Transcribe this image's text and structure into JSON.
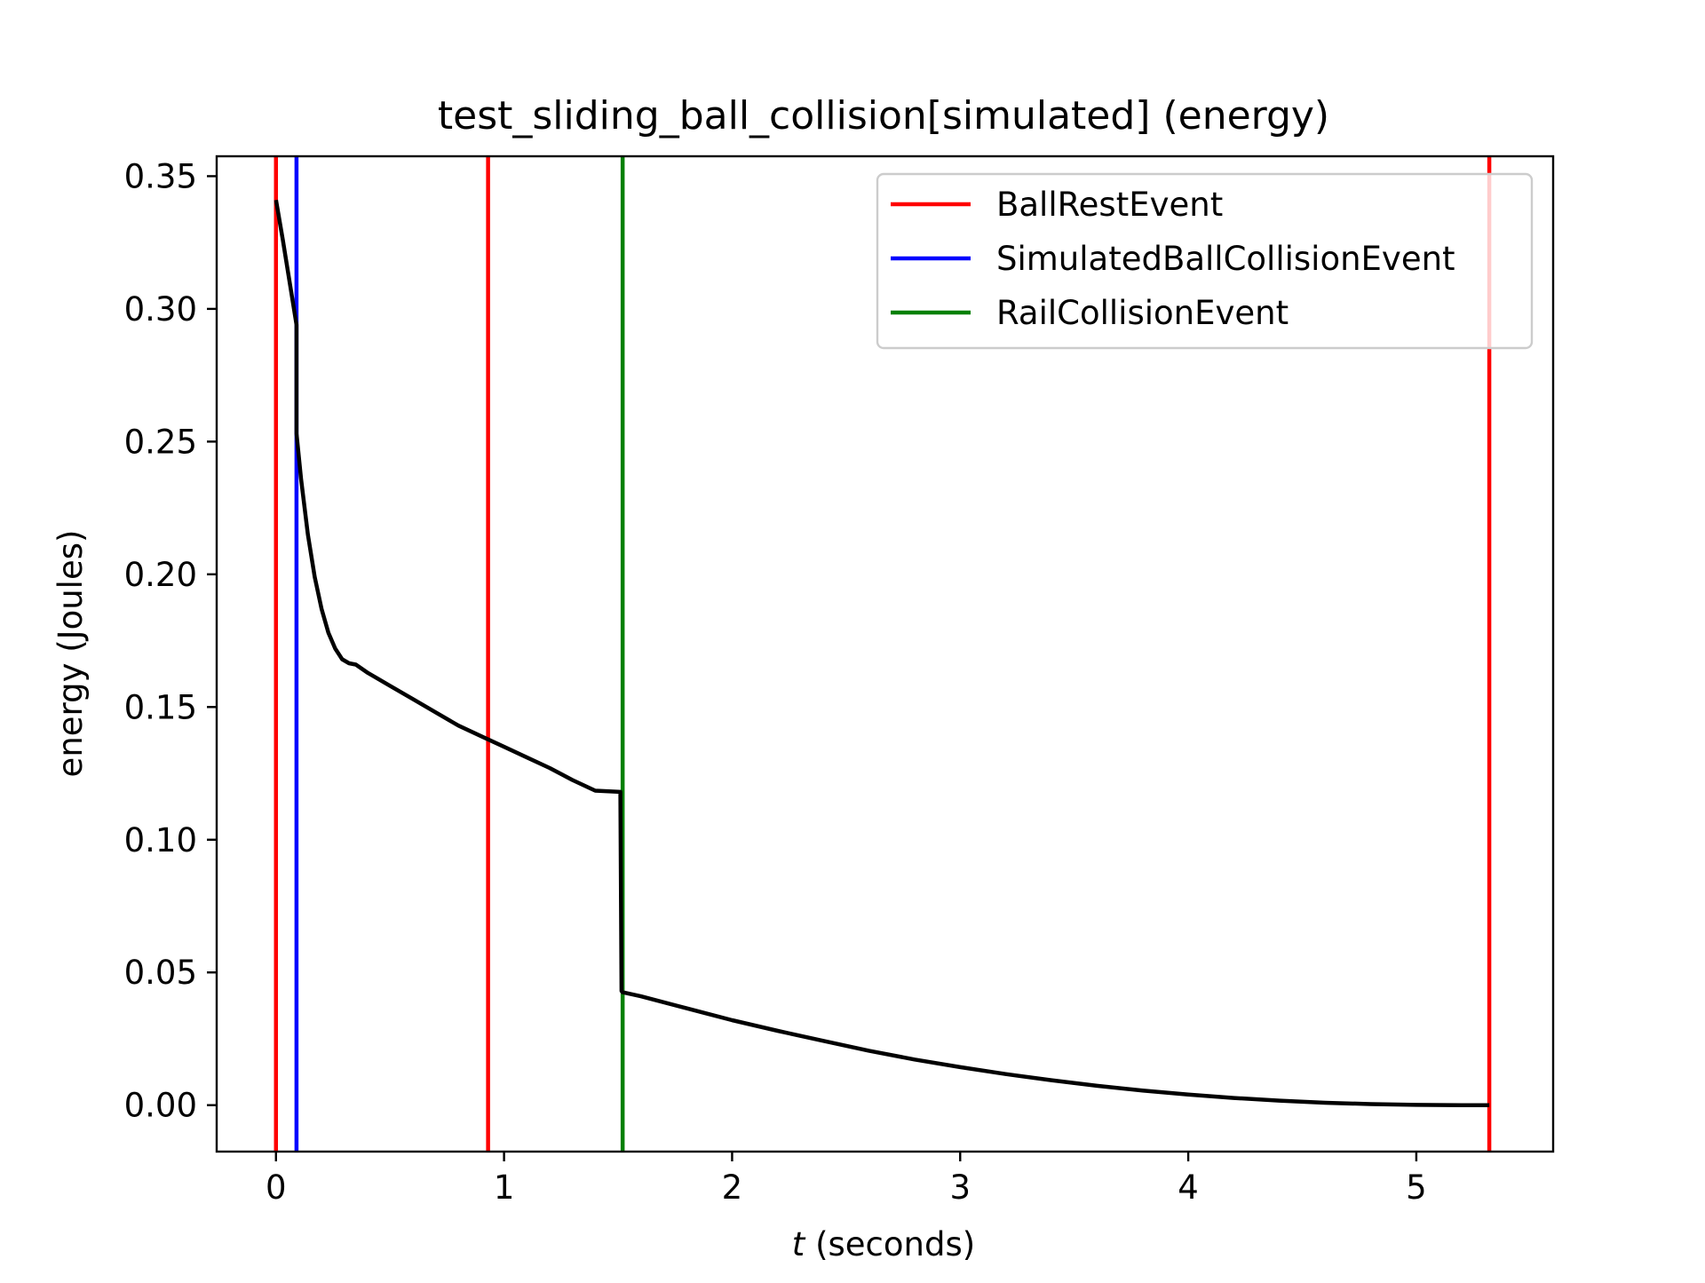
{
  "chart_data": {
    "type": "line",
    "title": "test_sliding_ball_collision[simulated] (energy)",
    "xlabel_var": "t",
    "xlabel_rest": " (seconds)",
    "ylabel": "energy (Joules)",
    "xlim": [
      -0.26,
      5.6
    ],
    "ylim": [
      -0.0175,
      0.3575
    ],
    "xticks": [
      0,
      1,
      2,
      3,
      4,
      5
    ],
    "xtick_labels": [
      "0",
      "1",
      "2",
      "3",
      "4",
      "5"
    ],
    "yticks": [
      0.0,
      0.05,
      0.1,
      0.15,
      0.2,
      0.25,
      0.3,
      0.35
    ],
    "ytick_labels": [
      "0.00",
      "0.05",
      "0.10",
      "0.15",
      "0.20",
      "0.25",
      "0.30",
      "0.35"
    ],
    "grid": false,
    "legend_position": "top-right",
    "events": [
      {
        "type": "BallRestEvent",
        "x": 0.0
      },
      {
        "type": "SimulatedBallCollisionEvent",
        "x": 0.09
      },
      {
        "type": "BallRestEvent",
        "x": 0.93
      },
      {
        "type": "RailCollisionEvent",
        "x": 1.52
      },
      {
        "type": "BallRestEvent",
        "x": 5.32
      }
    ],
    "legend": [
      {
        "name": "BallRestEvent",
        "color": "#ff0000"
      },
      {
        "name": "SimulatedBallCollisionEvent",
        "color": "#0000ff"
      },
      {
        "name": "RailCollisionEvent",
        "color": "#008000"
      }
    ],
    "energy_series": {
      "color": "#000000",
      "x": [
        0.0,
        0.03,
        0.06,
        0.09,
        0.09,
        0.11,
        0.14,
        0.17,
        0.2,
        0.23,
        0.26,
        0.29,
        0.32,
        0.35,
        0.4,
        0.5,
        0.6,
        0.7,
        0.8,
        0.9,
        1.0,
        1.1,
        1.2,
        1.3,
        1.4,
        1.51,
        1.515,
        1.52,
        1.6,
        1.8,
        2.0,
        2.2,
        2.4,
        2.6,
        2.8,
        3.0,
        3.2,
        3.4,
        3.6,
        3.8,
        4.0,
        4.2,
        4.4,
        4.6,
        4.8,
        5.0,
        5.2,
        5.32
      ],
      "y": [
        0.341,
        0.326,
        0.31,
        0.294,
        0.253,
        0.236,
        0.215,
        0.199,
        0.187,
        0.178,
        0.172,
        0.168,
        0.1665,
        0.166,
        0.163,
        0.158,
        0.153,
        0.148,
        0.143,
        0.139,
        0.135,
        0.131,
        0.127,
        0.1225,
        0.1185,
        0.118,
        0.043,
        0.0425,
        0.041,
        0.0365,
        0.032,
        0.028,
        0.0242,
        0.0205,
        0.0172,
        0.0143,
        0.0117,
        0.0094,
        0.0073,
        0.0055,
        0.004,
        0.0027,
        0.0017,
        0.0009,
        0.0004,
        0.0001,
        0.0,
        0.0
      ]
    }
  }
}
